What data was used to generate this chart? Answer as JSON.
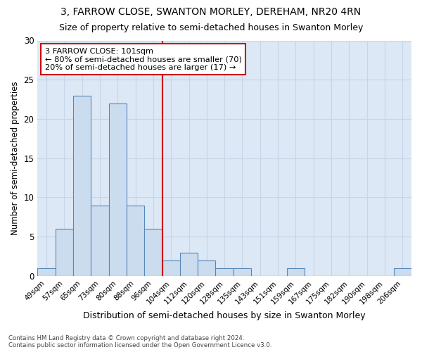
{
  "title1": "3, FARROW CLOSE, SWANTON MORLEY, DEREHAM, NR20 4RN",
  "title2": "Size of property relative to semi-detached houses in Swanton Morley",
  "xlabel": "Distribution of semi-detached houses by size in Swanton Morley",
  "ylabel": "Number of semi-detached properties",
  "categories": [
    "49sqm",
    "57sqm",
    "65sqm",
    "73sqm",
    "80sqm",
    "88sqm",
    "96sqm",
    "104sqm",
    "112sqm",
    "120sqm",
    "128sqm",
    "135sqm",
    "143sqm",
    "151sqm",
    "159sqm",
    "167sqm",
    "175sqm",
    "182sqm",
    "190sqm",
    "198sqm",
    "206sqm"
  ],
  "values": [
    1,
    6,
    23,
    9,
    22,
    9,
    6,
    2,
    3,
    2,
    1,
    1,
    0,
    0,
    1,
    0,
    0,
    0,
    0,
    0,
    1
  ],
  "bar_color": "#ccdcef",
  "bar_edge_color": "#5588bb",
  "grid_color": "#c8d4e8",
  "axes_bg_color": "#dce8f5",
  "fig_bg_color": "#ffffff",
  "annotation_line1": "3 FARROW CLOSE: 101sqm",
  "annotation_line2": "← 80% of semi-detached houses are smaller (70)",
  "annotation_line3": "20% of semi-detached houses are larger (17) →",
  "vline_color": "#cc0000",
  "ylim": [
    0,
    30
  ],
  "yticks": [
    0,
    5,
    10,
    15,
    20,
    25,
    30
  ],
  "footer": "Contains HM Land Registry data © Crown copyright and database right 2024.\nContains public sector information licensed under the Open Government Licence v3.0.",
  "annotation_box_facecolor": "#ffffff",
  "annotation_box_edgecolor": "#cc0000"
}
